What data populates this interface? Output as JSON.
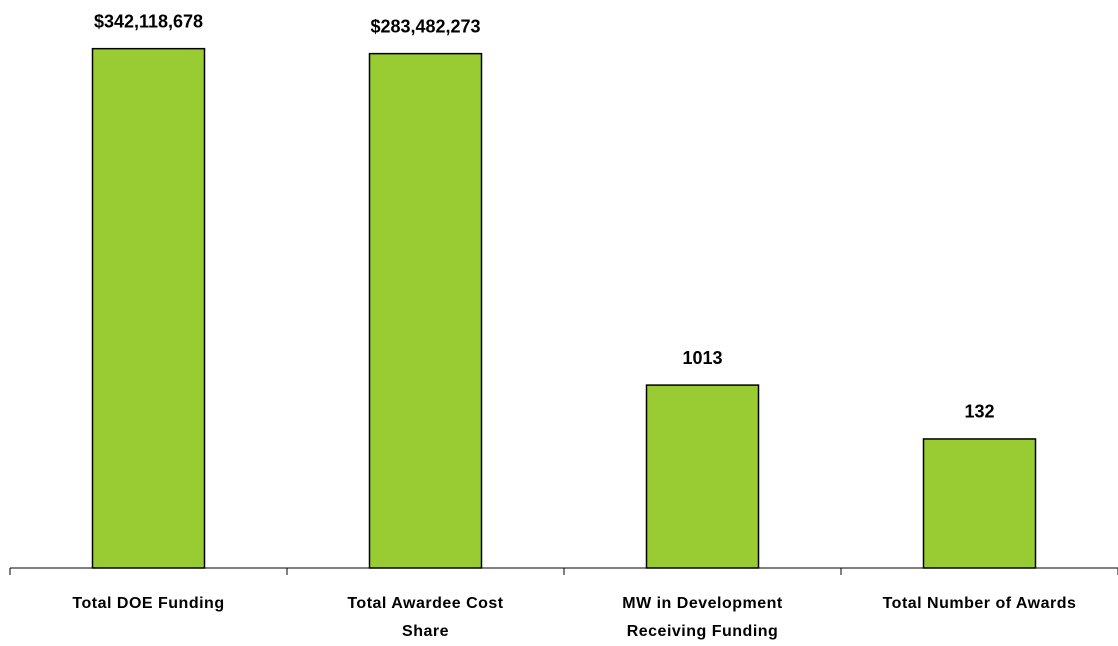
{
  "chart_data": {
    "type": "bar",
    "categories": [
      "Total DOE Funding",
      "Total Awardee Cost Share",
      "MW in Development Receiving Funding",
      "Total Number of Awards"
    ],
    "values": [
      342118678,
      283482273,
      1013,
      132
    ],
    "value_labels": [
      "$342,118,678",
      "$283,482,273",
      "1013",
      "132"
    ],
    "color": "#99cc33",
    "log_scale": true,
    "ylim": [
      1,
      2000000000
    ]
  }
}
